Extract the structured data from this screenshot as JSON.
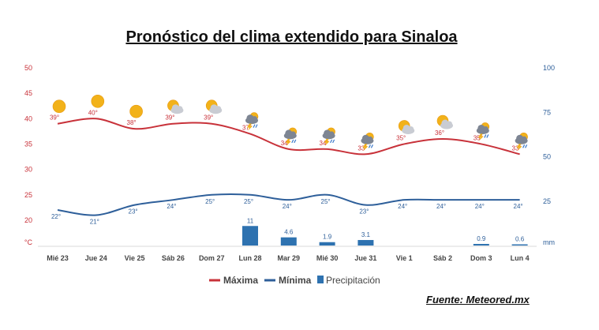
{
  "chart_data": {
    "type": "line",
    "title": "Pronóstico del clima extendido para Sinaloa",
    "categories": [
      "Mié 23",
      "Jue 24",
      "Vie 25",
      "Sáb 26",
      "Dom 27",
      "Lun 28",
      "Mar 29",
      "Mié 30",
      "Jue 31",
      "Vie 1",
      "Sáb 2",
      "Dom 3",
      "Lun 4"
    ],
    "series": [
      {
        "name": "Máxima",
        "color": "#c8323a",
        "values": [
          39,
          40,
          38,
          39,
          39,
          37,
          34,
          34,
          33,
          35,
          36,
          35,
          33
        ],
        "labels": [
          "39°",
          "40°",
          "38°",
          "39°",
          "39°",
          "37°",
          "34°",
          "34°",
          "33°",
          "35°",
          "36°",
          "35°",
          "33°"
        ]
      },
      {
        "name": "Mínima",
        "color": "#2e5f9a",
        "values": [
          22,
          21,
          23,
          24,
          25,
          25,
          24,
          25,
          23,
          24,
          24,
          24,
          24
        ],
        "labels": [
          "22°",
          "21°",
          "23°",
          "24°",
          "25°",
          "25°",
          "24°",
          "25°",
          "23°",
          "24°",
          "24°",
          "24°",
          "24°"
        ]
      },
      {
        "name": "Precipitación",
        "color": "#2e72b0",
        "values": [
          null,
          null,
          null,
          null,
          null,
          11,
          4.6,
          1.9,
          3.1,
          null,
          null,
          0.9,
          0.6
        ],
        "labels": [
          "",
          "",
          "",
          "",
          "",
          "11",
          "4.6",
          "1.9",
          "3.1",
          "",
          "",
          "0.9",
          "0.6"
        ]
      }
    ],
    "y_left": {
      "ticks": [
        "50",
        "45",
        "40",
        "35",
        "30",
        "25",
        "20"
      ],
      "unit": "°C",
      "range": [
        17,
        50
      ]
    },
    "y_right": {
      "ticks": [
        "100",
        "75",
        "50",
        "25"
      ],
      "unit": "mm",
      "range": [
        0,
        100
      ]
    },
    "icons": [
      "sun-icon",
      "sun-icon",
      "sun-icon",
      "partly-cloudy-icon",
      "partly-cloudy-icon",
      "storm-icon",
      "storm-icon",
      "storm-icon",
      "storm-icon",
      "partly-cloudy-icon",
      "partly-cloudy-icon",
      "storm-icon",
      "storm-icon"
    ],
    "legend_position": "bottom-center",
    "grid": false
  },
  "source_label": "Fuente: Meteored.mx"
}
